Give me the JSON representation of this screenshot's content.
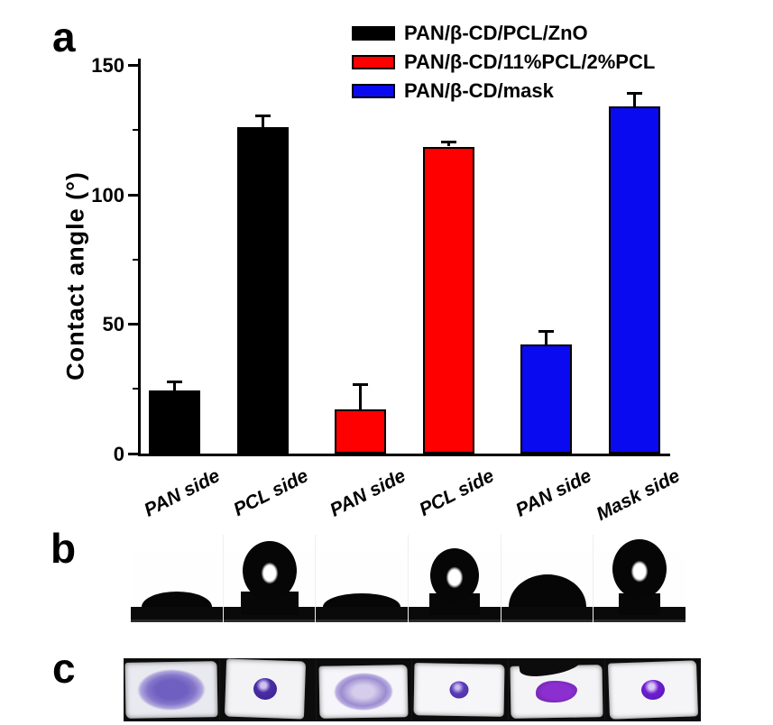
{
  "figure": {
    "panel_a_label": "a",
    "panel_b_label": "b",
    "panel_c_label": "c"
  },
  "chart_data": {
    "type": "bar",
    "title": "",
    "xlabel": "",
    "ylabel": "Contact angle (°)",
    "ylim": [
      0,
      150
    ],
    "yticks": [
      0,
      50,
      100,
      150
    ],
    "minor_yticks": [
      25,
      75,
      125
    ],
    "grid": "off",
    "legend_position": "top-right",
    "categories": [
      "PAN side",
      "PCL side",
      "PAN side",
      "PCL side",
      "PAN side",
      "Mask side"
    ],
    "series": [
      {
        "name": "PAN/β-CD/PCL/ZnO",
        "color": "#000000",
        "values": [
          24.5,
          126.0
        ],
        "errors": [
          3.0,
          4.0
        ]
      },
      {
        "name": "PAN/β-CD/11%PCL/2%PCL",
        "color": "#FF0000",
        "values": [
          17.0,
          118.5
        ],
        "errors": [
          9.5,
          1.5
        ]
      },
      {
        "name": "PAN/β-CD/mask",
        "color": "#0A0AF0",
        "values": [
          42.0,
          134.0
        ],
        "errors": [
          5.0,
          5.0
        ]
      }
    ]
  },
  "panel_b": {
    "images": [
      {
        "name": "spread-droplet-photo",
        "type": "flat"
      },
      {
        "name": "beaded-droplet-photo",
        "type": "sphere"
      },
      {
        "name": "spread-droplet-photo",
        "type": "flat"
      },
      {
        "name": "beaded-droplet-photo",
        "type": "sphere"
      },
      {
        "name": "dome-droplet-photo",
        "type": "dome"
      },
      {
        "name": "beaded-droplet-photo",
        "type": "sphere"
      }
    ]
  },
  "panel_c": {
    "images": [
      {
        "name": "absorbed-dye-stain-photo",
        "type": "absorbed"
      },
      {
        "name": "beaded-dye-drop-photo",
        "type": "beaded"
      },
      {
        "name": "diffuse-dye-stain-photo",
        "type": "diffuse"
      },
      {
        "name": "small-dye-drop-photo",
        "type": "beaded-small"
      },
      {
        "name": "spread-dye-blob-photo",
        "type": "spread"
      },
      {
        "name": "beaded-dye-drop-photo",
        "type": "beaded"
      }
    ]
  }
}
